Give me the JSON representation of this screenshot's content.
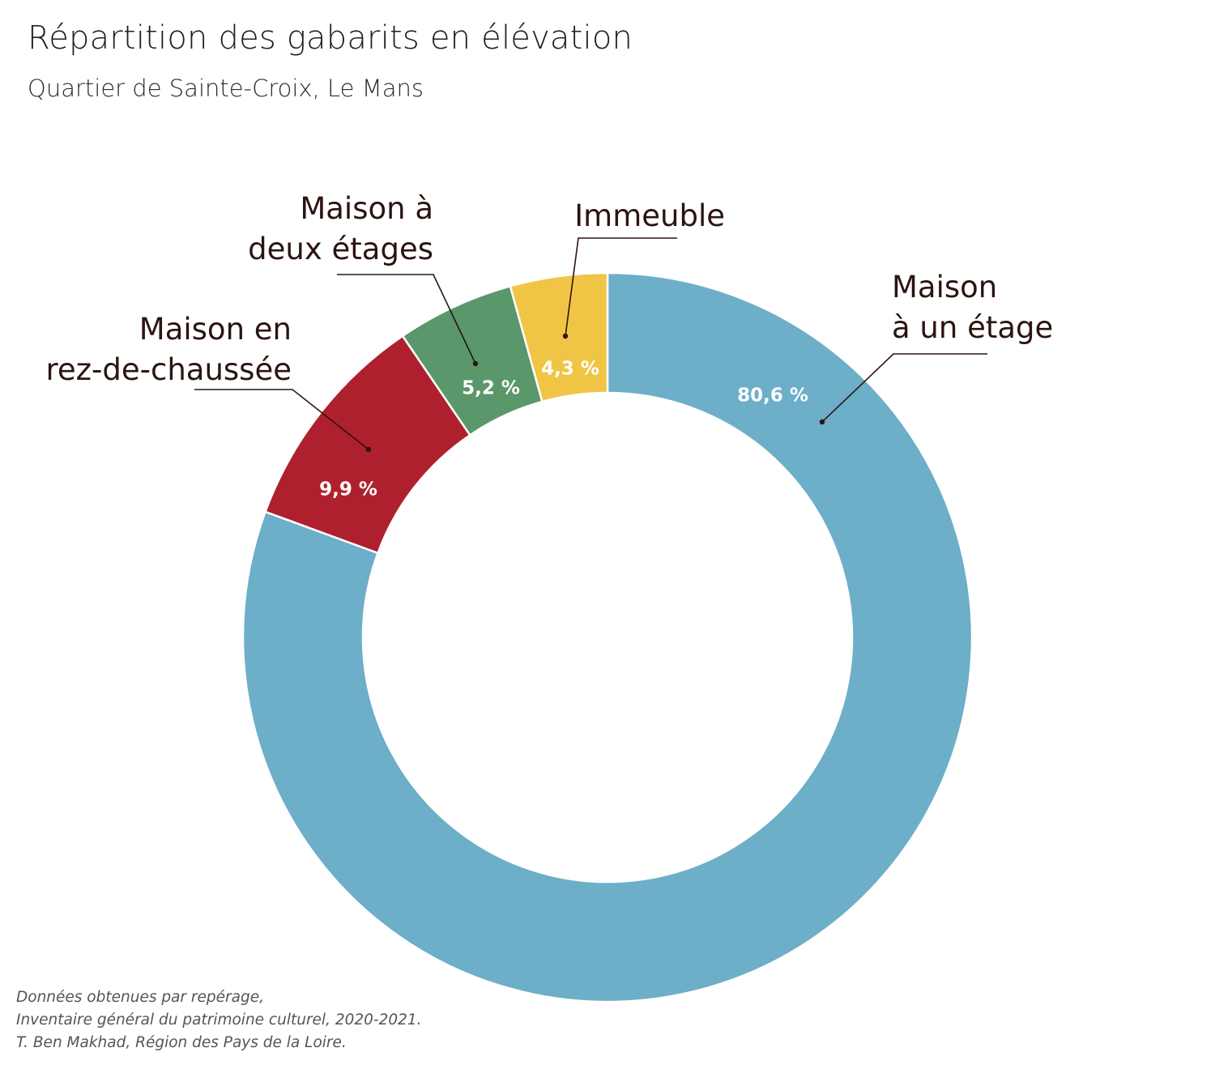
{
  "title": "Répartition des gabarits en élévation",
  "subtitle": "Quartier de Sainte-Croix, Le Mans",
  "source": [
    "Données obtenues par repérage,",
    "Inventaire général du patrimoine culturel, 2020-2021.",
    "T. Ben Makhad, Région des Pays de la Loire."
  ],
  "chart_data": {
    "type": "pie",
    "variant": "donut",
    "slices": [
      {
        "label": [
          "Maison",
          "à un étage"
        ],
        "value": 80.6,
        "value_label": "80,6 %",
        "color": "#6daec9"
      },
      {
        "label": [
          "Maison en",
          "rez-de-chaussée"
        ],
        "value": 9.9,
        "value_label": "9,9 %",
        "color": "#af202e"
      },
      {
        "label": [
          "Maison à",
          "deux étages"
        ],
        "value": 5.2,
        "value_label": "5,2 %",
        "color": "#5a976b"
      },
      {
        "label": [
          "Immeuble"
        ],
        "value": 4.3,
        "value_label": "4,3 %",
        "color": "#f0c545"
      }
    ],
    "direction": "clockwise",
    "start": "top"
  }
}
